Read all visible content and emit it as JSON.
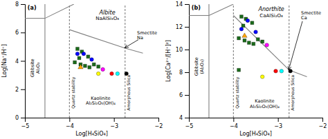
{
  "chart_data": [
    {
      "type": "scatter",
      "xlabel": "Log[H₄SiO₄]",
      "ylabel": "Log[Na⁺/H⁺]",
      "xlim": [
        -5,
        -2
      ],
      "ylim": [
        0,
        8
      ],
      "xticks": [
        -5,
        -4,
        -3,
        -2
      ],
      "yticks": [
        0,
        2,
        4,
        6,
        8
      ],
      "annotations": [
        "(a)",
        "Albite",
        "NaAlSi₃O₈",
        "Smectite\nNa",
        "Gibbsite\nAl₂O₃",
        "Quartz stability",
        "Amorphous Silica",
        "Kaolinite\nAl₂Si₂O₅(OH)₄"
      ],
      "series": [
        {
          "type": "line",
          "line_style": "solid",
          "color": "#808080",
          "x": [
            -4.55,
            -4.55
          ],
          "values": [
            0,
            8
          ]
        },
        {
          "type": "line",
          "line_style": "dashed",
          "color": "#808080",
          "x": [
            -4.0,
            -4.0
          ],
          "values": [
            0,
            8
          ]
        },
        {
          "type": "line",
          "line_style": "dashed",
          "color": "#808080",
          "x": [
            -2.75,
            -2.75
          ],
          "values": [
            0,
            8
          ]
        },
        {
          "type": "line",
          "line_style": "solid",
          "color": "#808080",
          "x": [
            -5,
            -4.55
          ],
          "values": [
            7.0,
            7.0
          ]
        },
        {
          "type": "line",
          "line_style": "solid",
          "color": "#808080",
          "x": [
            -4.55,
            -3.9
          ],
          "values": [
            7.0,
            8.0
          ]
        },
        {
          "type": "line",
          "line_style": "solid",
          "color": "#808080",
          "x": [
            -4.0,
            -2.75
          ],
          "values": [
            6.2,
            4.9
          ]
        },
        {
          "type": "line",
          "line_style": "solid",
          "color": "#808080",
          "x": [
            -2.75,
            -2.35
          ],
          "values": [
            4.9,
            4.55
          ]
        },
        {
          "type": "arrow",
          "color": "black",
          "x": [
            -2.45,
            -2.76
          ],
          "values": [
            5.5,
            4.92
          ]
        },
        {
          "type": "scatter",
          "marker": "square",
          "color": "#1a6b1a",
          "x": [
            -3.82,
            -3.72,
            -3.58,
            -3.78,
            -3.88,
            -3.75,
            -3.65,
            -3.55,
            -3.45,
            -3.35
          ],
          "values": [
            4.85,
            4.65,
            4.3,
            4.2,
            3.9,
            3.75,
            3.65,
            3.55,
            3.75,
            3.6
          ]
        },
        {
          "type": "scatter",
          "marker": "circle",
          "color": "blue",
          "x": [
            -3.68,
            -3.82,
            -3.5
          ],
          "values": [
            4.5,
            4.5,
            4.1
          ]
        },
        {
          "type": "scatter",
          "marker": "triangle",
          "color": "orange",
          "x": [
            -3.75
          ],
          "values": [
            3.55
          ]
        },
        {
          "type": "scatter",
          "marker": "circle",
          "color": "magenta",
          "x": [
            -3.25
          ],
          "values": [
            3.4
          ]
        },
        {
          "type": "scatter",
          "marker": "circle",
          "color": "yellow",
          "x": [
            -3.35
          ],
          "values": [
            3.1
          ]
        },
        {
          "type": "scatter",
          "marker": "circle",
          "color": "red",
          "x": [
            -3.05
          ],
          "values": [
            3.1
          ]
        },
        {
          "type": "scatter",
          "marker": "circle",
          "color": "cyan",
          "x": [
            -2.92
          ],
          "values": [
            3.1
          ]
        },
        {
          "type": "scatter",
          "marker": "circle",
          "color": "black",
          "x": [
            -2.72
          ],
          "values": [
            3.1
          ]
        }
      ]
    },
    {
      "type": "scatter",
      "xlabel": "Log[H₄SiO₄]",
      "ylabel": "Log[Ca²⁺/[H⁺]²]",
      "xlim": [
        -5,
        -2
      ],
      "ylim": [
        4,
        14
      ],
      "xticks": [
        -5,
        -4,
        -3,
        -2
      ],
      "yticks": [
        4,
        6,
        8,
        10,
        12,
        14
      ],
      "annotations": [
        "(b)",
        "Anorthite",
        "CaAlSi₂O₈",
        "Smectite\nCa",
        "Gibbsite\n(Al₂O₃)",
        "Quartz stability",
        "Amorphous Silica",
        "Kaolinite\nAl₂Si₂O₅(OH)₄"
      ],
      "series": [
        {
          "type": "line",
          "line_style": "solid",
          "color": "#808080",
          "x": [
            -4.55,
            -4.55
          ],
          "values": [
            4,
            14
          ]
        },
        {
          "type": "line",
          "line_style": "dashed",
          "color": "#808080",
          "x": [
            -4.0,
            -4.0
          ],
          "values": [
            4,
            14
          ]
        },
        {
          "type": "line",
          "line_style": "dashed",
          "color": "#808080",
          "x": [
            -2.75,
            -2.75
          ],
          "values": [
            4,
            14
          ]
        },
        {
          "type": "line",
          "line_style": "solid",
          "color": "#808080",
          "x": [
            -5,
            -4.55
          ],
          "values": [
            13.0,
            13.0
          ]
        },
        {
          "type": "line",
          "line_style": "solid",
          "color": "#808080",
          "x": [
            -4.55,
            -4.0
          ],
          "values": [
            13.0,
            14.0
          ]
        },
        {
          "type": "line",
          "line_style": "solid",
          "color": "#808080",
          "x": [
            -4.0,
            -2.75
          ],
          "values": [
            13.0,
            8.2
          ]
        },
        {
          "type": "line",
          "line_style": "solid",
          "color": "#808080",
          "x": [
            -2.75,
            -2.35
          ],
          "values": [
            8.2,
            7.6
          ]
        },
        {
          "type": "arrow",
          "color": "black",
          "x": [
            -2.45,
            -2.76
          ],
          "values": [
            12.5,
            8.2
          ]
        },
        {
          "type": "scatter",
          "marker": "square",
          "color": "#1a6b1a",
          "x": [
            -3.82,
            -3.72,
            -3.58,
            -3.78,
            -3.88,
            -3.75,
            -3.65,
            -3.55,
            -3.45,
            -3.35,
            -3.88
          ],
          "values": [
            12.9,
            12.7,
            12.35,
            12.1,
            11.0,
            10.8,
            10.6,
            10.5,
            10.9,
            10.7,
            8.2
          ]
        },
        {
          "type": "scatter",
          "marker": "circle",
          "color": "blue",
          "x": [
            -3.68,
            -3.82,
            -3.5
          ],
          "values": [
            12.55,
            11.8,
            11.55
          ]
        },
        {
          "type": "scatter",
          "marker": "triangle",
          "color": "orange",
          "x": [
            -3.75
          ],
          "values": [
            11.2
          ]
        },
        {
          "type": "scatter",
          "marker": "circle",
          "color": "magenta",
          "x": [
            -3.25
          ],
          "values": [
            10.4
          ]
        },
        {
          "type": "scatter",
          "marker": "circle",
          "color": "yellow",
          "x": [
            -3.35
          ],
          "values": [
            7.6
          ]
        },
        {
          "type": "scatter",
          "marker": "circle",
          "color": "red",
          "x": [
            -3.05
          ],
          "values": [
            8.1
          ]
        },
        {
          "type": "scatter",
          "marker": "circle",
          "color": "cyan",
          "x": [
            -2.92
          ],
          "values": [
            8.1
          ]
        },
        {
          "type": "scatter",
          "marker": "circle",
          "color": "black",
          "x": [
            -2.72
          ],
          "values": [
            8.1
          ]
        }
      ]
    }
  ]
}
